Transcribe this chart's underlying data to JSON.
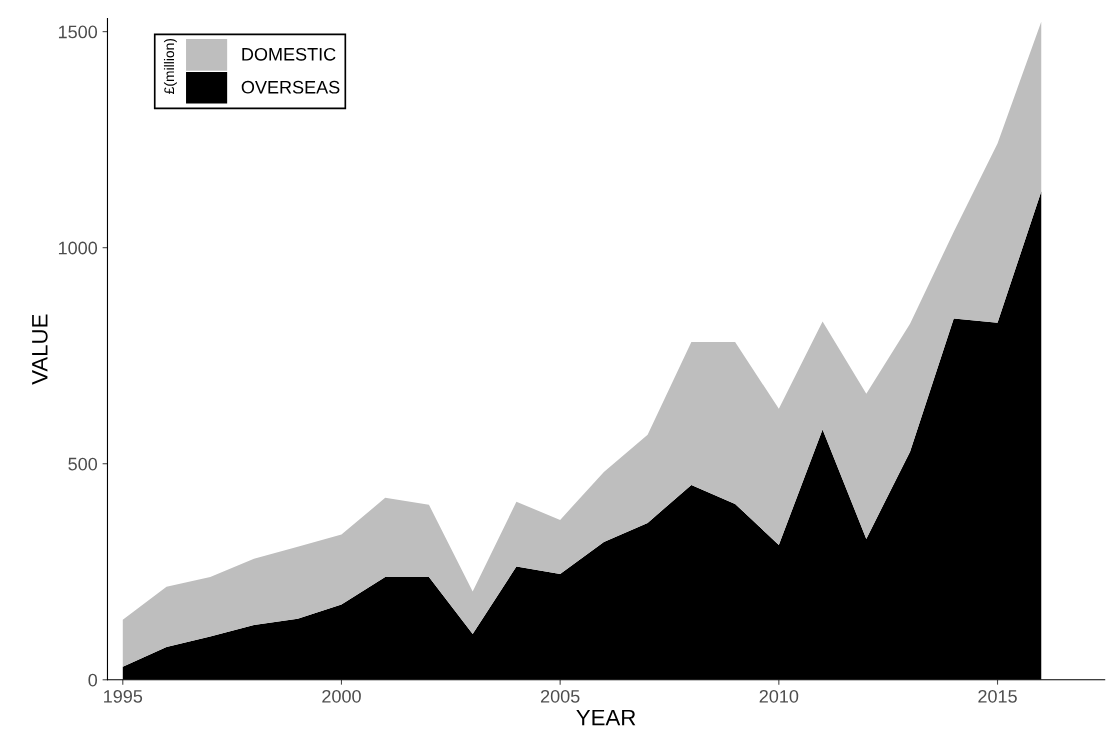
{
  "chart_data": {
    "type": "area",
    "stacked": true,
    "xlabel": "YEAR",
    "ylabel": "VALUE",
    "legend_title": "£(million)",
    "legend": "top left",
    "grid": false,
    "x": [
      1995,
      1996,
      1997,
      1998,
      1999,
      2000,
      2001,
      2002,
      2003,
      2004,
      2005,
      2006,
      2007,
      2008,
      2009,
      2010,
      2011,
      2012,
      2013,
      2014,
      2015,
      2016
    ],
    "series": [
      {
        "name": "OVERSEAS",
        "color": "#000000",
        "values": [
          30,
          76,
          100,
          127,
          141,
          174,
          238,
          238,
          106,
          262,
          245,
          319,
          363,
          451,
          407,
          312,
          579,
          326,
          528,
          836,
          826,
          1130
        ]
      },
      {
        "name": "DOMESTIC",
        "color": "#bebebe",
        "values": [
          109,
          139,
          138,
          153,
          167,
          162,
          183,
          167,
          98,
          150,
          125,
          162,
          204,
          331,
          375,
          315,
          250,
          336,
          296,
          201,
          415,
          393
        ]
      }
    ],
    "xlim": [
      1994.65,
      2017.45
    ],
    "ylim": [
      0,
      1530
    ],
    "xticks": [
      1995,
      2000,
      2005,
      2010,
      2015
    ],
    "yticks": [
      0,
      500,
      1000,
      1500
    ]
  }
}
